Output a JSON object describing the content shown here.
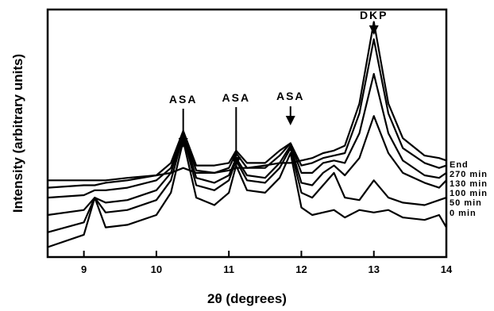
{
  "chart_data": {
    "type": "line",
    "title": "",
    "xlabel": "2θ (degrees)",
    "ylabel": "Intensity (arbitrary units)",
    "xlim": [
      8.5,
      14.0
    ],
    "ylim": [
      0,
      100
    ],
    "xticks": [
      9,
      10,
      11,
      12,
      13,
      14
    ],
    "yticks": [],
    "grid": false,
    "legend": "right-edge labels beside each trace",
    "series": [
      {
        "name": "0 min",
        "x": [
          8.5,
          9.0,
          9.15,
          9.3,
          9.6,
          10.0,
          10.2,
          10.37,
          10.55,
          10.8,
          11.0,
          11.1,
          11.25,
          11.5,
          11.7,
          11.85,
          12.0,
          12.15,
          12.3,
          12.45,
          12.6,
          12.8,
          13.0,
          13.2,
          13.4,
          13.7,
          13.9,
          14.0
        ],
        "y": [
          4,
          9,
          24,
          12,
          13,
          17,
          26,
          47,
          24,
          21,
          26,
          37,
          27,
          26,
          32,
          42,
          20,
          17,
          18,
          19,
          16,
          19,
          18,
          19,
          16,
          15,
          17,
          12
        ]
      },
      {
        "name": "50 min",
        "x": [
          8.5,
          9.0,
          9.15,
          9.3,
          9.6,
          10.0,
          10.2,
          10.37,
          10.55,
          10.8,
          11.0,
          11.1,
          11.25,
          11.5,
          11.7,
          11.85,
          12.0,
          12.15,
          12.3,
          12.45,
          12.6,
          12.8,
          13.0,
          13.2,
          13.4,
          13.7,
          13.9,
          14.0
        ],
        "y": [
          10,
          14,
          24,
          18,
          19,
          23,
          31,
          49,
          29,
          27,
          31,
          39,
          31,
          30,
          36,
          44,
          26,
          24,
          29,
          34,
          24,
          23,
          31,
          24,
          22,
          21,
          23,
          24
        ]
      },
      {
        "name": "100 min",
        "x": [
          8.5,
          9.0,
          9.15,
          9.3,
          9.6,
          10.0,
          10.2,
          10.37,
          10.55,
          10.8,
          11.0,
          11.1,
          11.25,
          11.5,
          11.7,
          11.85,
          12.0,
          12.15,
          12.3,
          12.45,
          12.6,
          12.8,
          13.0,
          13.2,
          13.4,
          13.7,
          13.9,
          14.0
        ],
        "y": [
          17,
          19,
          24,
          22,
          23,
          27,
          34,
          50,
          32,
          30,
          33,
          40,
          33,
          32,
          38,
          45,
          30,
          29,
          34,
          37,
          33,
          40,
          57,
          42,
          34,
          30,
          28,
          31
        ]
      },
      {
        "name": "130 min",
        "x": [
          8.5,
          9.0,
          9.15,
          9.3,
          9.6,
          10.0,
          10.2,
          10.37,
          10.55,
          10.8,
          11.0,
          11.1,
          11.25,
          11.5,
          11.7,
          11.85,
          12.0,
          12.15,
          12.3,
          12.45,
          12.6,
          12.8,
          13.0,
          13.2,
          13.4,
          13.7,
          13.9,
          14.0
        ],
        "y": [
          24,
          25,
          27,
          27,
          28,
          31,
          36,
          50,
          35,
          34,
          36,
          42,
          36,
          36,
          41,
          46,
          34,
          34,
          38,
          39,
          38,
          50,
          74,
          50,
          39,
          33,
          32,
          34
        ]
      },
      {
        "name": "270 min",
        "x": [
          8.5,
          9.0,
          9.15,
          9.3,
          9.6,
          10.0,
          10.2,
          10.37,
          10.55,
          10.8,
          11.0,
          11.1,
          11.25,
          11.5,
          11.7,
          11.85,
          12.0,
          12.15,
          12.3,
          12.45,
          12.6,
          12.8,
          13.0,
          13.2,
          13.4,
          13.7,
          13.9,
          14.0
        ],
        "y": [
          28,
          29,
          29,
          30,
          31,
          33,
          38,
          51,
          37,
          37,
          38,
          43,
          38,
          38,
          43,
          46,
          37,
          38,
          40,
          41,
          42,
          58,
          88,
          58,
          44,
          38,
          36,
          37
        ]
      },
      {
        "name": "End",
        "x": [
          8.5,
          9.0,
          9.15,
          9.3,
          9.6,
          10.0,
          10.2,
          10.37,
          10.55,
          10.8,
          11.0,
          11.1,
          11.25,
          11.5,
          11.7,
          11.85,
          12.0,
          12.15,
          12.3,
          12.45,
          12.6,
          12.8,
          13.0,
          13.2,
          13.4,
          13.7,
          13.9,
          14.0
        ],
        "y": [
          31,
          31,
          31,
          31,
          32,
          33,
          34,
          36,
          34,
          34,
          35,
          36,
          36,
          37,
          38,
          38,
          39,
          40,
          42,
          43,
          45,
          62,
          95,
          62,
          48,
          41,
          40,
          39
        ]
      }
    ],
    "annotations": [
      {
        "text": "ASA",
        "x": 10.37
      },
      {
        "text": "ASA",
        "x": 11.1
      },
      {
        "text": "ASA",
        "x": 11.85
      },
      {
        "text": "DKP",
        "x": 13.0
      }
    ]
  }
}
